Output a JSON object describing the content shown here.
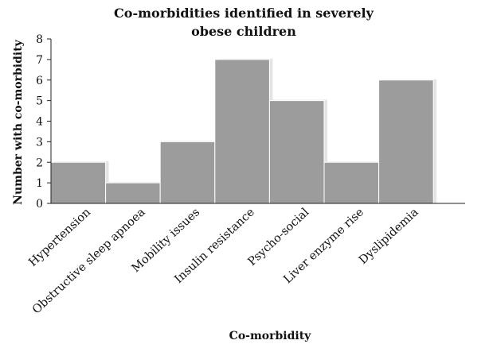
{
  "chart_data": {
    "type": "bar",
    "title_lines": [
      "Co-morbidities identified in severely",
      "obese children"
    ],
    "xlabel": "Co-morbidity",
    "ylabel": "Number with co-morbidity",
    "categories": [
      "Hypertension",
      "Obstructive sleep apnoea",
      "Mobility issues",
      "Insulin resistance",
      "Psycho-social",
      "Liver enzyme rise",
      "Dyslipidemia"
    ],
    "values": [
      2,
      1,
      3,
      7,
      5,
      2,
      6
    ],
    "yticks": [
      "0",
      "1",
      "2",
      "3",
      "4",
      "5",
      "6",
      "7",
      "8"
    ],
    "ylim": [
      0,
      8
    ],
    "grid": false,
    "legend": "none",
    "colors": {
      "bar": "#9c9c9c",
      "bar_shadow": "#e4e4e4",
      "bar_edge": "#ffffff",
      "axis": "#222222"
    }
  }
}
